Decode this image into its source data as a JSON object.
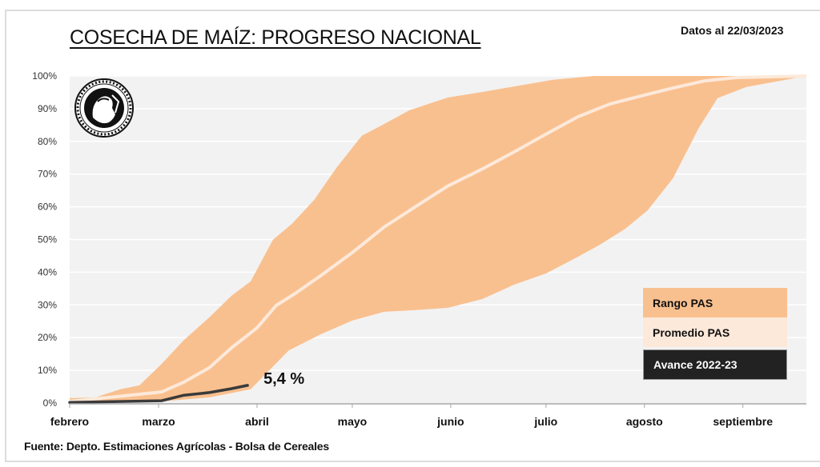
{
  "header": {
    "title": "COSECHA DE MAÍZ: PROGRESO NACIONAL",
    "date_note": "Datos al 22/03/2023"
  },
  "footer": {
    "source": "Fuente: Depto. Estimaciones Agrícolas - Bolsa de Cereales"
  },
  "logo": {
    "icon": "bolsa-de-cereales-seal-icon"
  },
  "legend": {
    "items": [
      {
        "label": "Rango PAS",
        "color": "#F9C08F",
        "text_color": "#111111"
      },
      {
        "label": "Promedio PAS",
        "color": "#FDE9DA",
        "text_color": "#111111"
      },
      {
        "label": "Avance 2022-23",
        "color": "#222222",
        "text_color": "#ffffff"
      }
    ]
  },
  "chart_data": {
    "type": "area",
    "title": "COSECHA DE MAÍZ: PROGRESO NACIONAL",
    "xlabel": "",
    "ylabel": "",
    "x_unit": "days since Feb 1",
    "xlim": [
      0,
      232
    ],
    "ylim": [
      0,
      100
    ],
    "grid": true,
    "legend_position": "right",
    "x_ticks": [
      {
        "label": "febrero",
        "day": 0
      },
      {
        "label": "marzo",
        "day": 28
      },
      {
        "label": "abril",
        "day": 59
      },
      {
        "label": "mayo",
        "day": 89
      },
      {
        "label": "junio",
        "day": 120
      },
      {
        "label": "julio",
        "day": 150
      },
      {
        "label": "agosto",
        "day": 181
      },
      {
        "label": "septiembre",
        "day": 212
      }
    ],
    "y_ticks": [
      "0%",
      "10%",
      "20%",
      "30%",
      "40%",
      "50%",
      "60%",
      "70%",
      "80%",
      "90%",
      "100%"
    ],
    "series": [
      {
        "name": "Rango PAS (máximo)",
        "role": "range_upper",
        "x": [
          0,
          8,
          16,
          22,
          29,
          36,
          44,
          51,
          57,
          64,
          70,
          77,
          84,
          92,
          99,
          107,
          119,
          130,
          140,
          152,
          165,
          232
        ],
        "values": [
          1.5,
          1.7,
          4.2,
          5.4,
          12.0,
          19.3,
          26.2,
          32.8,
          37.2,
          49.9,
          54.8,
          62.1,
          71.9,
          81.7,
          85.3,
          89.5,
          93.4,
          95.1,
          96.8,
          98.8,
          100,
          100
        ]
      },
      {
        "name": "Rango PAS (mínimo)",
        "role": "range_lower",
        "x": [
          0,
          29,
          44,
          57,
          69,
          79,
          89,
          99,
          109,
          119,
          130,
          140,
          150,
          160,
          167,
          175,
          182,
          190,
          198,
          204,
          213,
          232
        ],
        "values": [
          0.2,
          0.5,
          1.7,
          4.2,
          16.1,
          21.0,
          25.2,
          27.9,
          28.4,
          29.1,
          31.8,
          36.2,
          39.6,
          44.7,
          48.4,
          53.3,
          58.9,
          68.7,
          83.9,
          93.2,
          96.6,
          100
        ]
      },
      {
        "name": "Promedio PAS",
        "role": "average",
        "x": [
          0,
          29,
          36,
          44,
          51,
          59,
          65,
          71,
          79,
          89,
          99,
          109,
          119,
          130,
          140,
          150,
          160,
          170,
          180,
          190,
          200,
          210,
          232
        ],
        "values": [
          0.5,
          3.4,
          6.4,
          10.8,
          16.9,
          23.0,
          29.8,
          33.5,
          38.9,
          46.0,
          53.8,
          60.1,
          66.3,
          71.6,
          76.8,
          82.2,
          87.5,
          91.4,
          93.9,
          96.3,
          98.5,
          99.5,
          100
        ]
      },
      {
        "name": "Avance 2022-23",
        "role": "current",
        "x": [
          0,
          29,
          36,
          44,
          51,
          56
        ],
        "values": [
          0.2,
          0.7,
          2.4,
          3.2,
          4.4,
          5.4
        ]
      }
    ],
    "annotations": [
      {
        "text": "5,4 %",
        "series": "Avance 2022-23",
        "value": 5.4
      }
    ]
  }
}
